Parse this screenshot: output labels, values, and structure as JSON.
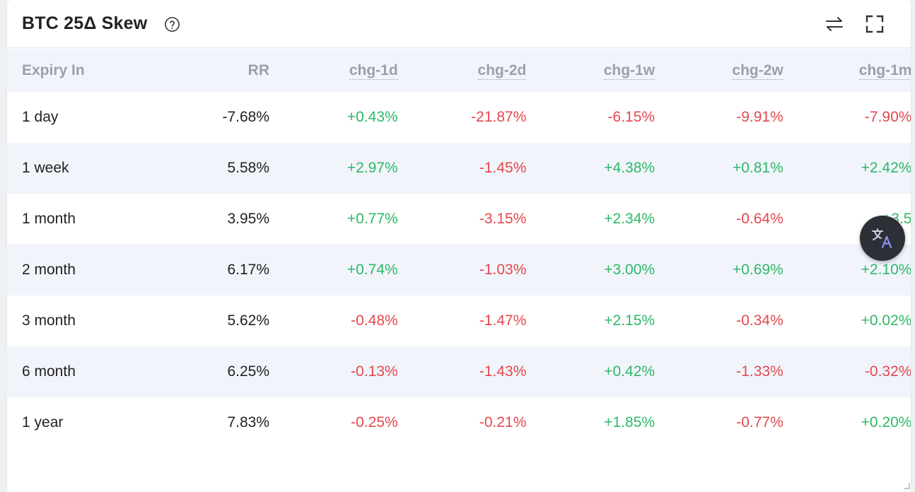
{
  "header": {
    "title": "BTC 25Δ Skew",
    "icons": [
      "help-icon",
      "swap-arrows-icon",
      "fullscreen-icon"
    ]
  },
  "table": {
    "columns": [
      "Expiry In",
      "RR",
      "chg-1d",
      "chg-2d",
      "chg-1w",
      "chg-2w",
      "chg-1m"
    ],
    "rows": [
      {
        "expiry": "1 day",
        "rr": "-7.68%",
        "chg_1d": "+0.43%",
        "chg_2d": "-21.87%",
        "chg_1w": "-6.15%",
        "chg_2w": "-9.91%",
        "chg_1m": "-7.90%"
      },
      {
        "expiry": "1 week",
        "rr": "5.58%",
        "chg_1d": "+2.97%",
        "chg_2d": "-1.45%",
        "chg_1w": "+4.38%",
        "chg_2w": "+0.81%",
        "chg_1m": "+2.42%"
      },
      {
        "expiry": "1 month",
        "rr": "3.95%",
        "chg_1d": "+0.77%",
        "chg_2d": "-3.15%",
        "chg_1w": "+2.34%",
        "chg_2w": "-0.64%",
        "chg_1m": "+3.5"
      },
      {
        "expiry": "2 month",
        "rr": "6.17%",
        "chg_1d": "+0.74%",
        "chg_2d": "-1.03%",
        "chg_1w": "+3.00%",
        "chg_2w": "+0.69%",
        "chg_1m": "+2.10%"
      },
      {
        "expiry": "3 month",
        "rr": "5.62%",
        "chg_1d": "-0.48%",
        "chg_2d": "-1.47%",
        "chg_1w": "+2.15%",
        "chg_2w": "-0.34%",
        "chg_1m": "+0.02%"
      },
      {
        "expiry": "6 month",
        "rr": "6.25%",
        "chg_1d": "-0.13%",
        "chg_2d": "-1.43%",
        "chg_1w": "+0.42%",
        "chg_2w": "-1.33%",
        "chg_1m": "-0.32%"
      },
      {
        "expiry": "1 year",
        "rr": "7.83%",
        "chg_1d": "-0.25%",
        "chg_2d": "-0.21%",
        "chg_1w": "+1.85%",
        "chg_2w": "-0.77%",
        "chg_1m": "+0.20%"
      }
    ]
  },
  "colors": {
    "positive": "#2eb867",
    "negative": "#e4484d",
    "header_text": "#9aa0ab",
    "stripe": "#f1f4fb"
  },
  "floating_button": {
    "icon": "translate-icon"
  }
}
